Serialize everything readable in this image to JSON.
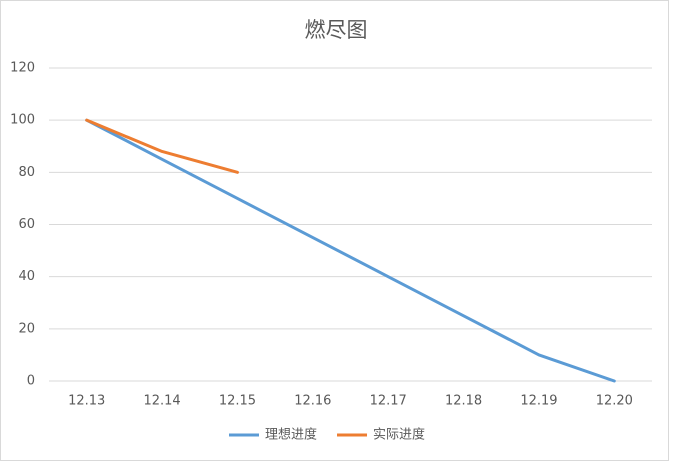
{
  "chart_data": {
    "type": "line",
    "title": "燃尽图",
    "categories": [
      "12.13",
      "12.14",
      "12.15",
      "12.16",
      "12.17",
      "12.18",
      "12.19",
      "12.20"
    ],
    "series": [
      {
        "name": "理想进度",
        "color": "#5b9bd5",
        "values": [
          100,
          85,
          70,
          55,
          40,
          25,
          10,
          0
        ]
      },
      {
        "name": "实际进度",
        "color": "#ed7d31",
        "values": [
          100,
          88,
          80,
          null,
          null,
          null,
          null,
          null
        ]
      }
    ],
    "ylim": [
      0,
      120
    ],
    "yticks": [
      0,
      20,
      40,
      60,
      80,
      100,
      120
    ],
    "grid": true,
    "legend": "bottom"
  }
}
